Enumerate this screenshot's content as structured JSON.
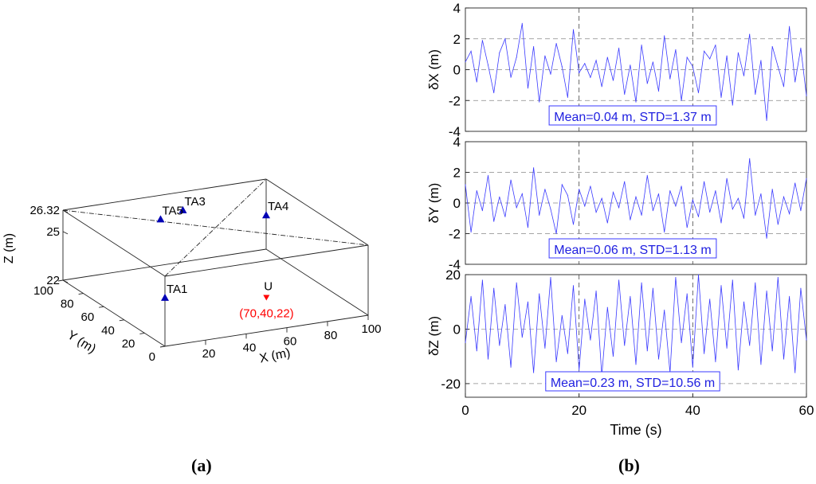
{
  "captions": {
    "a": "(a)",
    "b": "(b)"
  },
  "colors": {
    "series": "#3a3aff",
    "anchor": "#0000b4",
    "target": "#ff0000",
    "ink": "#000000",
    "grid": "#888888"
  },
  "chart_data": [
    {
      "type": "scatter3d",
      "title": "",
      "xlabel": "X (m)",
      "ylabel": "Y (m)",
      "zlabel": "Z (m)",
      "xlim": [
        0,
        100
      ],
      "ylim": [
        0,
        100
      ],
      "zlim": [
        22,
        26.32
      ],
      "xticks": [
        20,
        40,
        60,
        80,
        100
      ],
      "yticks": [
        0,
        20,
        40,
        60,
        80,
        100
      ],
      "zticks": [
        22,
        25,
        26.32
      ],
      "anchors": [
        {
          "name": "TA1",
          "x": 0,
          "y": 0,
          "z": 25
        },
        {
          "name": "TA3",
          "x": 55,
          "y": 92,
          "z": 25.6
        },
        {
          "name": "TA4",
          "x": 100,
          "y": 100,
          "z": 24.1
        },
        {
          "name": "TA5",
          "x": 38,
          "y": 80,
          "z": 25.85
        }
      ],
      "target": {
        "name": "U",
        "x": 70,
        "y": 40,
        "z": 22,
        "label": "(70,40,22)"
      }
    },
    {
      "type": "line",
      "ylabel": "δX (m)",
      "ylim": [
        -4,
        4
      ],
      "yticks": [
        -4,
        -2,
        0,
        2,
        4
      ],
      "xlim": [
        0,
        60
      ],
      "xticks": [],
      "show_xticks": false,
      "annotation": "Mean=0.04 m, STD=1.37 m",
      "x": [
        0,
        1,
        2,
        3,
        4,
        5,
        6,
        7,
        8,
        9,
        10,
        11,
        12,
        13,
        14,
        15,
        16,
        17,
        18,
        19,
        20,
        21,
        22,
        23,
        24,
        25,
        26,
        27,
        28,
        29,
        30,
        31,
        32,
        33,
        34,
        35,
        36,
        37,
        38,
        39,
        40,
        41,
        42,
        43,
        44,
        45,
        46,
        47,
        48,
        49,
        50,
        51,
        52,
        53,
        54,
        55,
        56,
        57,
        58,
        59,
        60
      ],
      "values": [
        0.5,
        1.2,
        -0.8,
        1.9,
        0.3,
        -1.5,
        1.1,
        2.0,
        -0.5,
        0.8,
        3.0,
        -1.2,
        1.5,
        -2.1,
        0.9,
        -0.3,
        1.7,
        0.2,
        -1.8,
        2.6,
        -0.2,
        0.4,
        -0.5,
        0.6,
        -1.1,
        0.8,
        -0.7,
        1.4,
        -1.6,
        0.3,
        -2.1,
        1.6,
        -0.9,
        0.5,
        -1.4,
        2.2,
        -0.6,
        1.3,
        -2.0,
        0.8,
        0.2,
        -1.5,
        1.2,
        0.7,
        1.6,
        -1.8,
        0.9,
        -2.3,
        1.1,
        -0.4,
        2.3,
        -1.6,
        0.6,
        -3.3,
        1.5,
        0.2,
        -1.1,
        2.8,
        -0.8,
        1.4,
        -1.7
      ]
    },
    {
      "type": "line",
      "ylabel": "δY (m)",
      "ylim": [
        -4,
        4
      ],
      "yticks": [
        -4,
        -2,
        0,
        2,
        4
      ],
      "xlim": [
        0,
        60
      ],
      "xticks": [],
      "show_xticks": false,
      "annotation": "Mean=0.06 m, STD=1.13 m",
      "x": [
        0,
        1,
        2,
        3,
        4,
        5,
        6,
        7,
        8,
        9,
        10,
        11,
        12,
        13,
        14,
        15,
        16,
        17,
        18,
        19,
        20,
        21,
        22,
        23,
        24,
        25,
        26,
        27,
        28,
        29,
        30,
        31,
        32,
        33,
        34,
        35,
        36,
        37,
        38,
        39,
        40,
        41,
        42,
        43,
        44,
        45,
        46,
        47,
        48,
        49,
        50,
        51,
        52,
        53,
        54,
        55,
        56,
        57,
        58,
        59,
        60
      ],
      "values": [
        1.2,
        -1.9,
        0.8,
        -0.5,
        1.8,
        -1.2,
        0.4,
        -0.9,
        1.5,
        -0.3,
        0.6,
        -1.6,
        2.3,
        -0.8,
        0.9,
        -0.4,
        -2.0,
        1.2,
        0.5,
        -1.4,
        0.9,
        -0.2,
        1.1,
        -0.6,
        0.3,
        -1.3,
        0.7,
        -0.3,
        1.4,
        -1.1,
        0.4,
        -0.8,
        1.8,
        -0.5,
        0.6,
        -1.9,
        0.8,
        -0.2,
        1.1,
        -1.6,
        0.2,
        -0.9,
        1.4,
        -0.6,
        0.8,
        -1.3,
        1.6,
        -0.4,
        0.3,
        -1.0,
        2.9,
        -0.8,
        0.6,
        -2.3,
        0.9,
        -1.4,
        0.4,
        -0.7,
        1.3,
        -0.5,
        1.6
      ]
    },
    {
      "type": "line",
      "ylabel": "δZ (m)",
      "ylim": [
        -25,
        20
      ],
      "yticks": [
        -20,
        0,
        20
      ],
      "xlim": [
        0,
        60
      ],
      "xticks": [
        0,
        20,
        40,
        60
      ],
      "show_xticks": true,
      "xlabel": "Time (s)",
      "annotation": "Mean=0.23 m, STD=10.56 m",
      "x": [
        0,
        1,
        2,
        3,
        4,
        5,
        6,
        7,
        8,
        9,
        10,
        11,
        12,
        13,
        14,
        15,
        16,
        17,
        18,
        19,
        20,
        21,
        22,
        23,
        24,
        25,
        26,
        27,
        28,
        29,
        30,
        31,
        32,
        33,
        34,
        35,
        36,
        37,
        38,
        39,
        40,
        41,
        42,
        43,
        44,
        45,
        46,
        47,
        48,
        49,
        50,
        51,
        52,
        53,
        54,
        55,
        56,
        57,
        58,
        59,
        60
      ],
      "values": [
        -5,
        12,
        -8,
        18,
        -11,
        15,
        -6,
        9,
        -14,
        17,
        -3,
        10,
        -16,
        13,
        -7,
        19,
        -12,
        5,
        -9,
        16,
        -15,
        11,
        -4,
        14,
        -17,
        8,
        -10,
        18,
        -6,
        12,
        -13,
        17,
        -8,
        15,
        -11,
        7,
        -16,
        19,
        -5,
        13,
        -14,
        20,
        -9,
        11,
        -12,
        16,
        -7,
        18,
        -15,
        10,
        -6,
        17,
        -13,
        14,
        -8,
        19,
        -11,
        12,
        -16,
        15,
        -4
      ]
    }
  ]
}
